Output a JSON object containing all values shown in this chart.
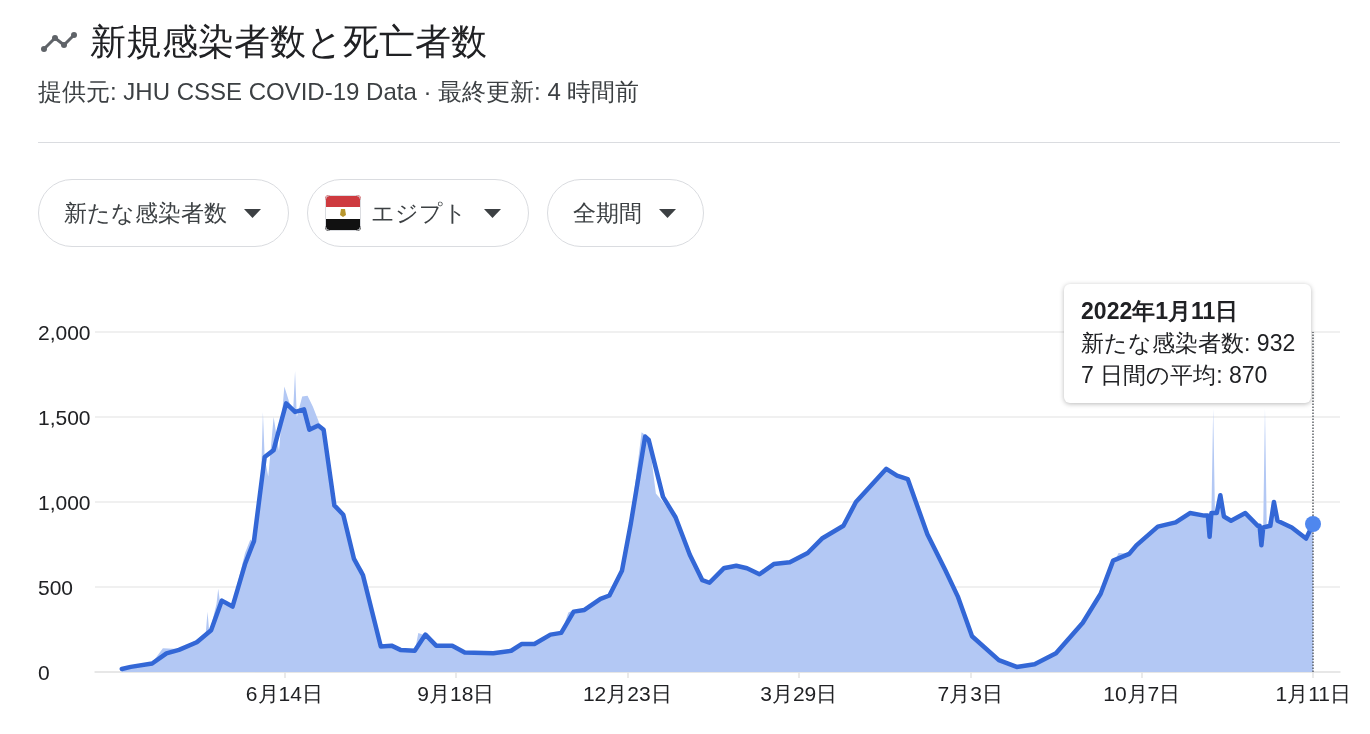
{
  "chart_data": {
    "type": "line",
    "title": "新規感染者数と死亡者数",
    "subtitle": "提供元: JHU CSSE COVID-19 Data · 最終更新: 4 時間前",
    "annotations": [
      "新たな感染者数",
      "エジプト",
      "全期間",
      "2022年1月11日",
      "新たな感染者数: 932",
      "7 日間の平均: 870"
    ],
    "xlim": [
      "2020-02-29",
      "2022-01-26"
    ],
    "xticks": [
      {
        "value": "2020-06-14",
        "label": "6月14日"
      },
      {
        "value": "2020-09-18",
        "label": "9月18日"
      },
      {
        "value": "2020-12-23",
        "label": "12月23日"
      },
      {
        "value": "2021-03-29",
        "label": "3月29日"
      },
      {
        "value": "2021-07-03",
        "label": "7月3日"
      },
      {
        "value": "2021-10-07",
        "label": "10月7日"
      },
      {
        "value": "2022-01-11",
        "label": "1月11日"
      }
    ],
    "ylim": [
      0,
      2000
    ],
    "yticks": [
      0,
      500,
      {
        "value": 1000,
        "label": "1,000"
      },
      {
        "value": 1500,
        "label": "1,500"
      },
      {
        "value": 2000,
        "label": "2,000"
      }
    ],
    "grid": "y",
    "ref_lines": [
      {
        "axis": "x",
        "value": "2022-01-11",
        "line_style": "dotted",
        "color": "#5f6368"
      }
    ],
    "series": [
      {
        "type": "area",
        "color": "#b3c8f4",
        "x": [
          "2020-03-15",
          "2020-03-25",
          "2020-04-01",
          "2020-04-07",
          "2020-04-16",
          "2020-04-26",
          "2020-05-01",
          "2020-05-02",
          "2020-05-03",
          "2020-05-07",
          "2020-05-08",
          "2020-05-09",
          "2020-05-16",
          "2020-05-23",
          "2020-05-26",
          "2020-05-28",
          "2020-06-01",
          "2020-06-02",
          "2020-06-03",
          "2020-06-05",
          "2020-06-08",
          "2020-06-11",
          "2020-06-14",
          "2020-06-17",
          "2020-06-19",
          "2020-06-20",
          "2020-06-21",
          "2020-06-24",
          "2020-06-27",
          "2020-06-30",
          "2020-07-03",
          "2020-07-06",
          "2020-07-09",
          "2020-07-12",
          "2020-07-17",
          "2020-07-23",
          "2020-07-28",
          "2020-08-02",
          "2020-08-07",
          "2020-08-13",
          "2020-08-18",
          "2020-08-26",
          "2020-08-28",
          "2020-09-01",
          "2020-09-07",
          "2020-09-16",
          "2020-09-23",
          "2020-10-09",
          "2020-10-19",
          "2020-10-25",
          "2020-11-01",
          "2020-11-10",
          "2020-11-16",
          "2020-11-20",
          "2020-11-23",
          "2020-11-29",
          "2020-12-08",
          "2020-12-13",
          "2020-12-20",
          "2020-12-25",
          "2020-12-31",
          "2021-01-04",
          "2021-01-08",
          "2021-01-12",
          "2021-01-19",
          "2021-01-27",
          "2021-02-03",
          "2021-02-07",
          "2021-02-15",
          "2021-02-22",
          "2021-02-28",
          "2021-03-07",
          "2021-03-15",
          "2021-03-24",
          "2021-04-03",
          "2021-04-11",
          "2021-04-23",
          "2021-04-30",
          "2021-05-17",
          "2021-05-23",
          "2021-05-29",
          "2021-06-09",
          "2021-06-19",
          "2021-06-26",
          "2021-07-04",
          "2021-07-19",
          "2021-07-29",
          "2021-08-08",
          "2021-08-20",
          "2021-09-04",
          "2021-09-14",
          "2021-09-24",
          "2021-09-30",
          "2021-10-04",
          "2021-10-16",
          "2021-10-26",
          "2021-11-03",
          "2021-11-13",
          "2021-11-15",
          "2021-11-16",
          "2021-11-17",
          "2021-11-20",
          "2021-11-23",
          "2021-11-26",
          "2021-12-04",
          "2021-12-11",
          "2021-12-14",
          "2021-12-15",
          "2021-12-16",
          "2021-12-20",
          "2021-12-23",
          "2021-12-30",
          "2022-01-07",
          "2022-01-11"
        ],
        "values": [
          15,
          35,
          55,
          140,
          135,
          190,
          230,
          355,
          230,
          400,
          490,
          410,
          400,
          700,
          780,
          760,
          1150,
          1530,
          1260,
          1150,
          1500,
          1300,
          1680,
          1580,
          1550,
          1770,
          1500,
          1620,
          1625,
          1560,
          1480,
          1400,
          1200,
          980,
          920,
          650,
          600,
          400,
          140,
          160,
          130,
          120,
          230,
          215,
          160,
          165,
          115,
          115,
          125,
          170,
          170,
          225,
          230,
          350,
          365,
          370,
          440,
          460,
          610,
          900,
          1410,
          1380,
          1050,
          1000,
          900,
          690,
          540,
          530,
          625,
          630,
          610,
          580,
          640,
          650,
          700,
          790,
          870,
          1000,
          1200,
          1160,
          1140,
          800,
          600,
          440,
          210,
          70,
          30,
          45,
          110,
          290,
          470,
          700,
          695,
          750,
          860,
          880,
          935,
          925,
          930,
          1550,
          930,
          1040,
          915,
          890,
          935,
          865,
          850,
          1550,
          850,
          1000,
          890,
          850,
          790,
          932
        ]
      },
      {
        "color": "#3367d6",
        "x": [
          "2020-03-15",
          "2020-03-20",
          "2020-04-01",
          "2020-04-09",
          "2020-04-16",
          "2020-04-26",
          "2020-05-04",
          "2020-05-10",
          "2020-05-16",
          "2020-05-23",
          "2020-05-28",
          "2020-06-03",
          "2020-06-08",
          "2020-06-11",
          "2020-06-15",
          "2020-06-20",
          "2020-06-25",
          "2020-06-28",
          "2020-07-03",
          "2020-07-06",
          "2020-07-12",
          "2020-07-17",
          "2020-07-23",
          "2020-07-28",
          "2020-08-07",
          "2020-08-13",
          "2020-08-18",
          "2020-08-26",
          "2020-09-01",
          "2020-09-07",
          "2020-09-16",
          "2020-09-23",
          "2020-10-09",
          "2020-10-19",
          "2020-10-25",
          "2020-11-01",
          "2020-11-10",
          "2020-11-16",
          "2020-11-23",
          "2020-11-29",
          "2020-12-08",
          "2020-12-13",
          "2020-12-20",
          "2020-12-25",
          "2021-01-02",
          "2021-01-04",
          "2021-01-12",
          "2021-01-19",
          "2021-01-27",
          "2021-02-03",
          "2021-02-07",
          "2021-02-15",
          "2021-02-22",
          "2021-02-28",
          "2021-03-07",
          "2021-03-15",
          "2021-03-24",
          "2021-04-03",
          "2021-04-11",
          "2021-04-23",
          "2021-04-30",
          "2021-05-17",
          "2021-05-23",
          "2021-05-29",
          "2021-06-09",
          "2021-06-19",
          "2021-06-26",
          "2021-07-04",
          "2021-07-19",
          "2021-07-29",
          "2021-08-08",
          "2021-08-20",
          "2021-09-04",
          "2021-09-14",
          "2021-09-21",
          "2021-09-30",
          "2021-10-04",
          "2021-10-16",
          "2021-10-26",
          "2021-11-03",
          "2021-11-11",
          "2021-11-13",
          "2021-11-14",
          "2021-11-15",
          "2021-11-18",
          "2021-11-20",
          "2021-11-22",
          "2021-11-26",
          "2021-12-04",
          "2021-12-11",
          "2021-12-12",
          "2021-12-13",
          "2021-12-14",
          "2021-12-18",
          "2021-12-20",
          "2021-12-22",
          "2021-12-30",
          "2022-01-07",
          "2022-01-11"
        ],
        "values": [
          18,
          30,
          50,
          110,
          130,
          175,
          245,
          420,
          385,
          635,
          770,
          1265,
          1305,
          1425,
          1580,
          1530,
          1545,
          1425,
          1450,
          1425,
          980,
          925,
          665,
          570,
          150,
          155,
          130,
          125,
          220,
          155,
          155,
          115,
          110,
          125,
          165,
          165,
          220,
          230,
          355,
          365,
          430,
          450,
          595,
          875,
          1385,
          1365,
          1030,
          910,
          690,
          540,
          525,
          610,
          625,
          610,
          575,
          635,
          645,
          700,
          785,
          860,
          1000,
          1195,
          1155,
          1135,
          810,
          600,
          445,
          210,
          70,
          30,
          45,
          110,
          290,
          460,
          655,
          695,
          745,
          855,
          880,
          935,
          920,
          920,
          795,
          935,
          935,
          1040,
          915,
          890,
          935,
          860,
          860,
          745,
          850,
          860,
          1000,
          890,
          850,
          785,
          870
        ]
      }
    ]
  }
}
